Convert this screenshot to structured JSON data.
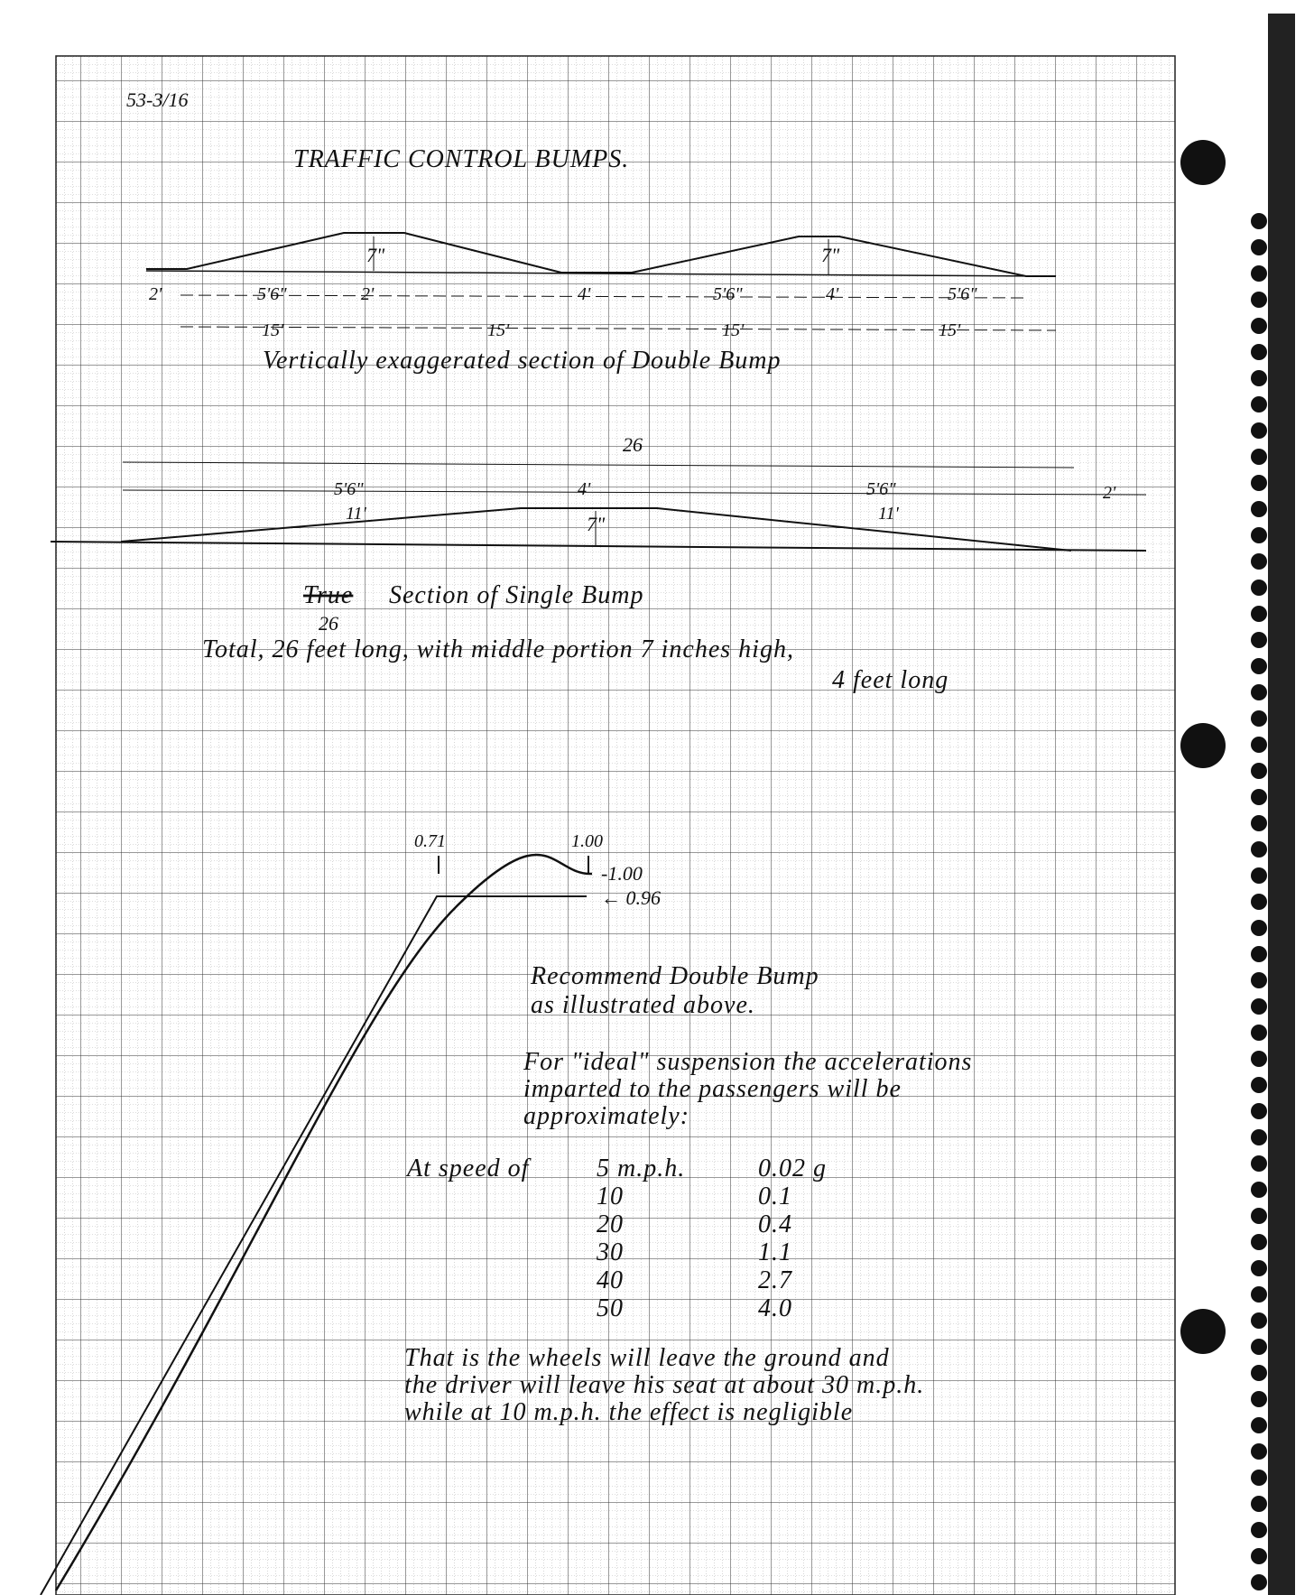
{
  "header": {
    "ref": "53-3/16",
    "title": "TRAFFIC CONTROL BUMPS."
  },
  "double_bump": {
    "heights": [
      "7\"",
      "7\""
    ],
    "dims_top": [
      "2'",
      "5'6\"",
      "2'",
      "4'",
      "5'6\"",
      "4'",
      "5'6\""
    ],
    "dims_bottom": [
      "15'",
      "15'",
      "15'",
      "15'"
    ],
    "caption": "Vertically exaggerated section of Double Bump"
  },
  "single_bump": {
    "total": "26",
    "segments": [
      "5'6\"",
      "11'",
      "4'",
      "5'6\"",
      "11'",
      "2'"
    ],
    "height": "7\"",
    "caption_struck": "True",
    "caption": "Section of Single Bump",
    "note_total": "26",
    "note_lines": [
      "Total, 26 feet long, with middle portion 7 inches high,",
      "4 feet long"
    ]
  },
  "graph": {
    "labels": [
      "0.71",
      "1.00",
      "-1.00",
      "← 0.96"
    ]
  },
  "recommendation": [
    "Recommend Double Bump",
    "as illustrated above."
  ],
  "suspension_note": [
    "For \"ideal\" suspension the accelerations",
    "imparted to the passengers will be",
    "approximately:"
  ],
  "table": {
    "lead": "At speed of",
    "rows": [
      [
        "5 m.p.h.",
        "0.02 g"
      ],
      [
        "10",
        "0.1"
      ],
      [
        "20",
        "0.4"
      ],
      [
        "30",
        "1.1"
      ],
      [
        "40",
        "2.7"
      ],
      [
        "50",
        "4.0"
      ]
    ]
  },
  "conclusion": [
    "That is the wheels will leave the ground and",
    "the driver will leave his seat at about 30 m.p.h.",
    "while at 10 m.p.h. the effect is negligible"
  ]
}
